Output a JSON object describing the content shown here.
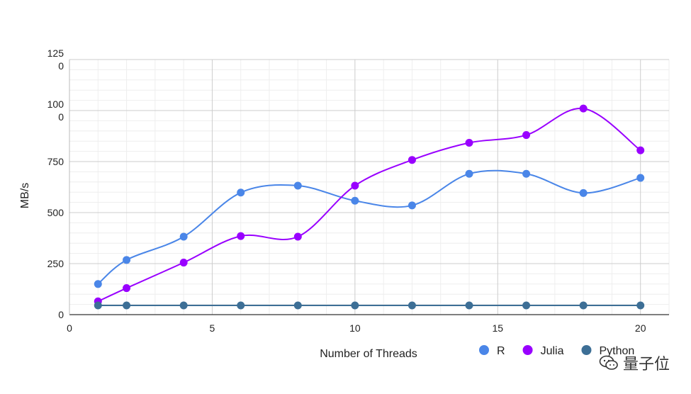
{
  "chart_data": {
    "type": "line",
    "title": "",
    "xlabel": "Number of Threads",
    "ylabel": "MB/s",
    "xlim": [
      0,
      21
    ],
    "ylim": [
      0,
      1250
    ],
    "x_ticks": [
      0,
      5,
      10,
      15,
      20
    ],
    "y_ticks": [
      {
        "value": 0,
        "label": "0"
      },
      {
        "value": 250,
        "label": "250"
      },
      {
        "value": 500,
        "label": "500"
      },
      {
        "value": 750,
        "label": "750"
      },
      {
        "value": 1000,
        "label": "100\n0"
      },
      {
        "value": 1250,
        "label": "125\n0"
      }
    ],
    "grid": true,
    "legend_position": "bottom-right",
    "x": [
      1,
      2,
      4,
      6,
      8,
      10,
      12,
      14,
      16,
      18,
      20
    ],
    "series": [
      {
        "name": "R",
        "color": "#4a86e8",
        "values": [
          150,
          268,
          382,
          598,
          632,
          558,
          535,
          690,
          690,
          596,
          670
        ]
      },
      {
        "name": "Julia",
        "color": "#9900ff",
        "values": [
          65,
          130,
          255,
          385,
          382,
          632,
          758,
          842,
          880,
          1010,
          805
        ]
      },
      {
        "name": "Python",
        "color": "#3d6f96",
        "values": [
          45,
          45,
          45,
          45,
          45,
          45,
          45,
          45,
          45,
          45,
          45
        ]
      }
    ]
  },
  "watermark": {
    "text": "量子位",
    "icon": "wechat-icon"
  }
}
